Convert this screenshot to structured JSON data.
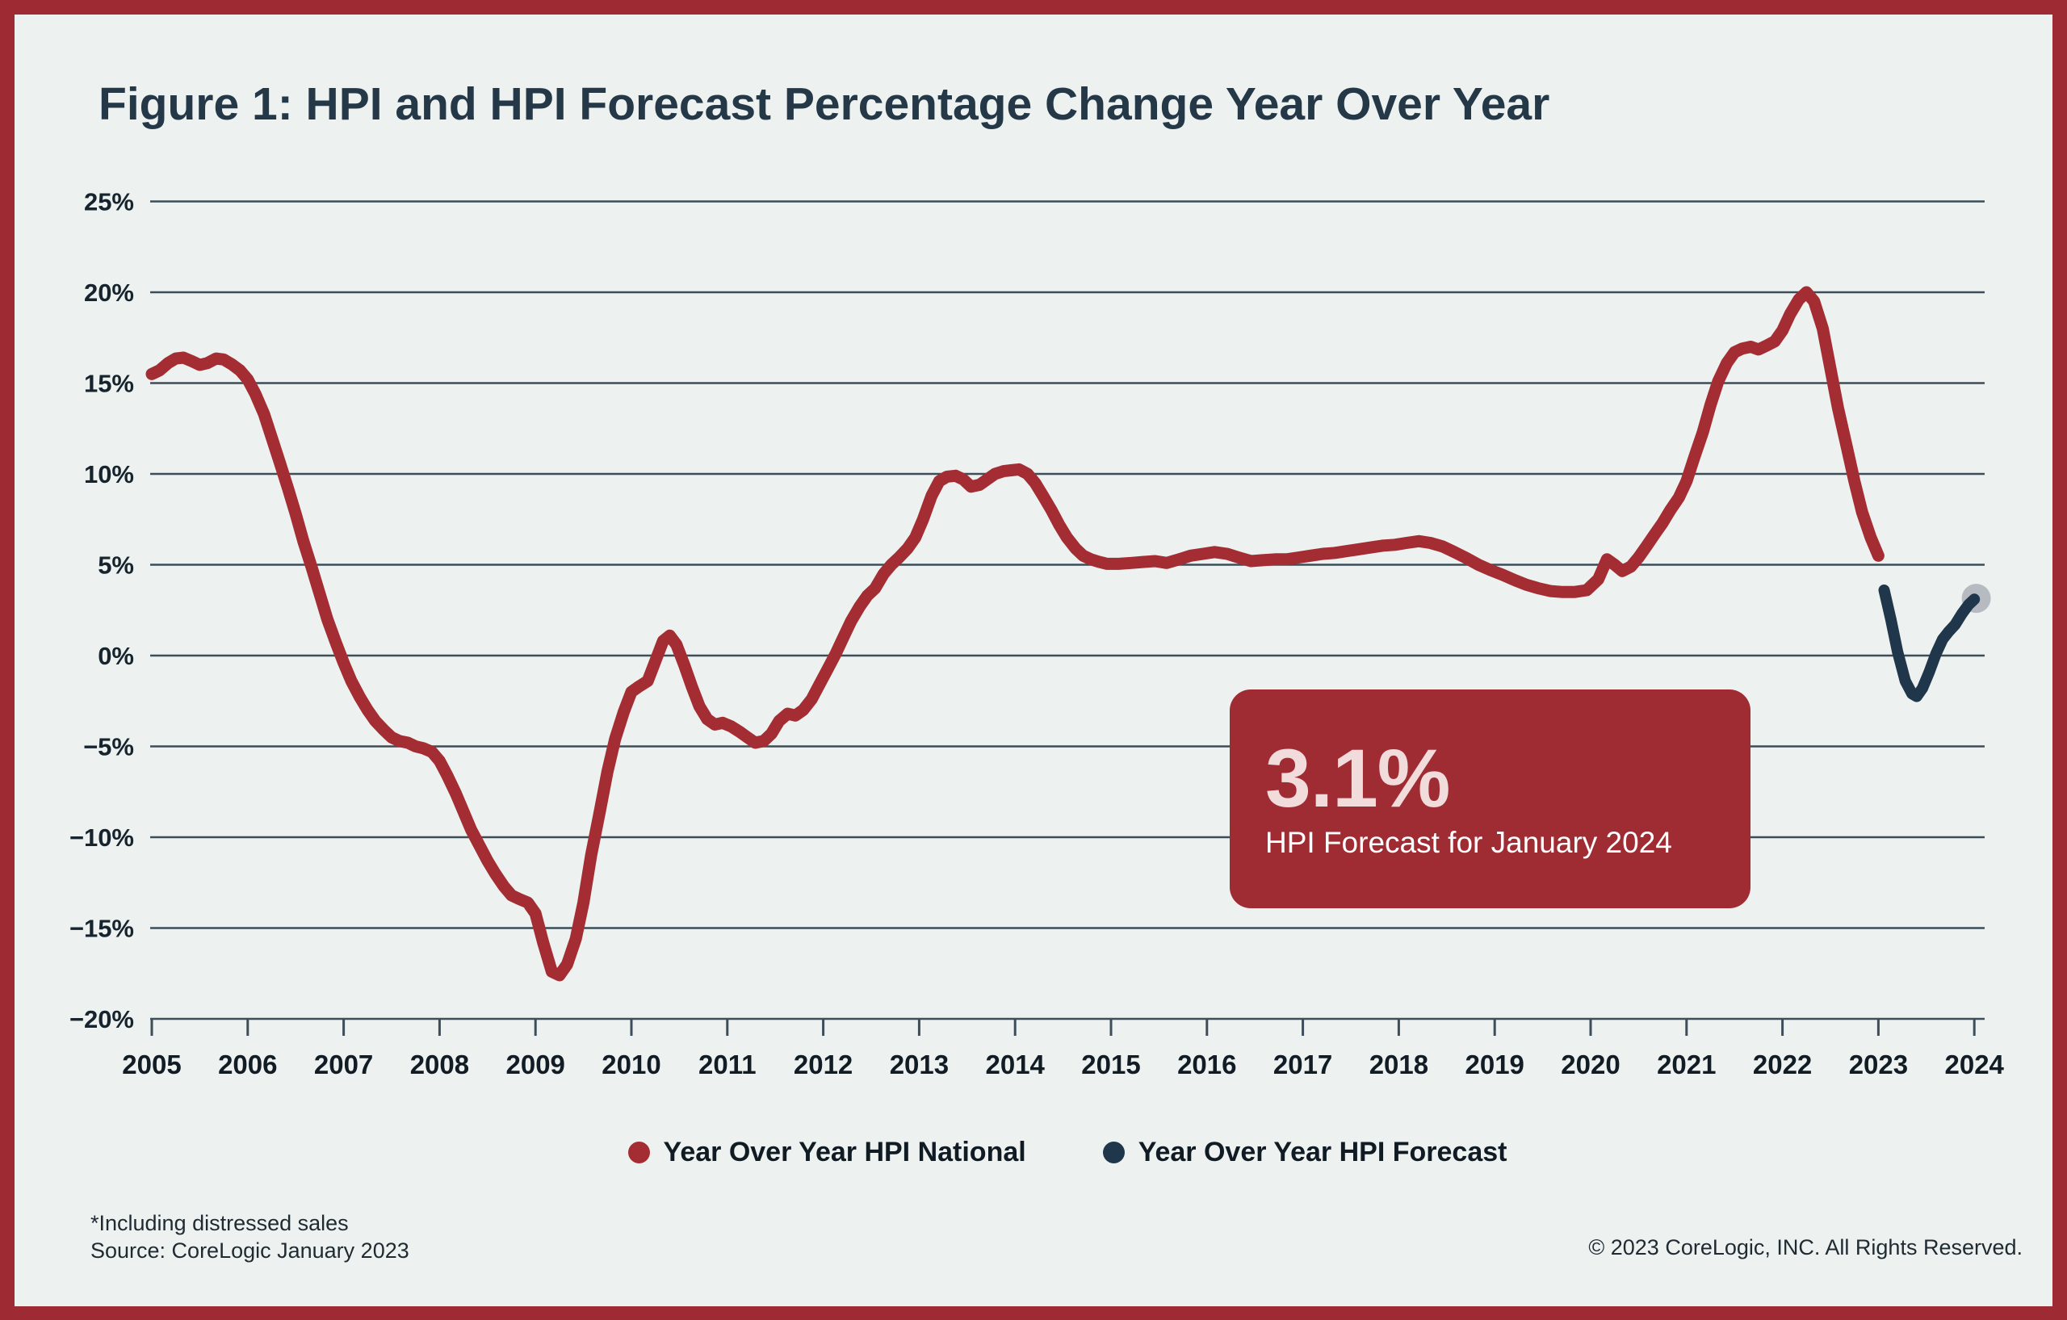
{
  "page": {
    "title": "Figure 1: HPI and HPI Forecast Percentage Change Year Over Year",
    "footnotes": {
      "line1": "*Including distressed sales",
      "line2": "Source: CoreLogic January 2023"
    },
    "copyright": "© 2023 CoreLogic, INC. All Rights Reserved.",
    "colors": {
      "frame": "#9e2b34",
      "background": "#edf2f1",
      "title_text": "#253847",
      "grid": "#3d4d59",
      "axis_text": "#17242e",
      "national_line": "#a42d34",
      "forecast_line": "#20364a",
      "end_marker": "#b5bbc0",
      "callout_bg": "#a02c33",
      "callout_value_text": "#f2dbdb",
      "callout_label_text": "#ffffff"
    }
  },
  "callout": {
    "value": "3.1%",
    "label": "HPI Forecast for January 2024"
  },
  "legend": {
    "national": "Year Over Year HPI National",
    "forecast": "Year Over Year HPI Forecast"
  },
  "chart_data": {
    "type": "line",
    "title": "Figure 1: HPI and HPI Forecast Percentage Change Year Over Year",
    "xlabel": "",
    "ylabel": "",
    "xlim": [
      2005,
      2024.2
    ],
    "ylim": [
      -20,
      25
    ],
    "grid": true,
    "legend_position": "bottom",
    "y_ticks": [
      {
        "label": "25%",
        "value": 25
      },
      {
        "label": "20%",
        "value": 20
      },
      {
        "label": "15%",
        "value": 15
      },
      {
        "label": "10%",
        "value": 10
      },
      {
        "label": "5%",
        "value": 5
      },
      {
        "label": "0%",
        "value": 0
      },
      {
        "label": "−5%",
        "value": -5
      },
      {
        "label": "−10%",
        "value": -10
      },
      {
        "label": "−15%",
        "value": -15
      },
      {
        "label": "−20%",
        "value": -20
      }
    ],
    "x_ticks": [
      {
        "label": "2005",
        "value": 2005
      },
      {
        "label": "2006",
        "value": 2006
      },
      {
        "label": "2007",
        "value": 2007
      },
      {
        "label": "2008",
        "value": 2008
      },
      {
        "label": "2009",
        "value": 2009
      },
      {
        "label": "2010",
        "value": 2010
      },
      {
        "label": "2011",
        "value": 2011
      },
      {
        "label": "2012",
        "value": 2012
      },
      {
        "label": "2013",
        "value": 2013
      },
      {
        "label": "2014",
        "value": 2014
      },
      {
        "label": "2015",
        "value": 2015
      },
      {
        "label": "2016",
        "value": 2016
      },
      {
        "label": "2017",
        "value": 2017
      },
      {
        "label": "2018",
        "value": 2018
      },
      {
        "label": "2019",
        "value": 2019
      },
      {
        "label": "2020",
        "value": 2020
      },
      {
        "label": "2021",
        "value": 2021
      },
      {
        "label": "2022",
        "value": 2022
      },
      {
        "label": "2023",
        "value": 2023
      },
      {
        "label": "2024",
        "value": 2024
      }
    ],
    "series": [
      {
        "name": "Year Over Year HPI National",
        "color": "#a42d34",
        "stroke_width": 15,
        "points": [
          [
            2005.0,
            15.5
          ],
          [
            2005.08,
            15.7
          ],
          [
            2005.17,
            16.1
          ],
          [
            2005.25,
            16.35
          ],
          [
            2005.33,
            16.4
          ],
          [
            2005.42,
            16.2
          ],
          [
            2005.5,
            16.0
          ],
          [
            2005.58,
            16.1
          ],
          [
            2005.67,
            16.35
          ],
          [
            2005.75,
            16.3
          ],
          [
            2005.83,
            16.05
          ],
          [
            2005.92,
            15.7
          ],
          [
            2006.0,
            15.2
          ],
          [
            2006.08,
            14.4
          ],
          [
            2006.17,
            13.3
          ],
          [
            2006.25,
            12.0
          ],
          [
            2006.33,
            10.7
          ],
          [
            2006.42,
            9.2
          ],
          [
            2006.5,
            7.8
          ],
          [
            2006.58,
            6.3
          ],
          [
            2006.67,
            4.8
          ],
          [
            2006.75,
            3.4
          ],
          [
            2006.83,
            2.0
          ],
          [
            2006.92,
            0.7
          ],
          [
            2007.0,
            -0.4
          ],
          [
            2007.08,
            -1.4
          ],
          [
            2007.17,
            -2.3
          ],
          [
            2007.25,
            -3.0
          ],
          [
            2007.33,
            -3.6
          ],
          [
            2007.42,
            -4.1
          ],
          [
            2007.5,
            -4.5
          ],
          [
            2007.58,
            -4.7
          ],
          [
            2007.67,
            -4.8
          ],
          [
            2007.75,
            -5.0
          ],
          [
            2007.83,
            -5.1
          ],
          [
            2007.92,
            -5.3
          ],
          [
            2008.0,
            -5.8
          ],
          [
            2008.08,
            -6.6
          ],
          [
            2008.17,
            -7.6
          ],
          [
            2008.25,
            -8.6
          ],
          [
            2008.33,
            -9.6
          ],
          [
            2008.42,
            -10.5
          ],
          [
            2008.5,
            -11.3
          ],
          [
            2008.58,
            -12.0
          ],
          [
            2008.67,
            -12.7
          ],
          [
            2008.75,
            -13.2
          ],
          [
            2008.83,
            -13.4
          ],
          [
            2008.92,
            -13.6
          ],
          [
            2009.0,
            -14.2
          ],
          [
            2009.08,
            -15.8
          ],
          [
            2009.17,
            -17.4
          ],
          [
            2009.25,
            -17.6
          ],
          [
            2009.33,
            -17.0
          ],
          [
            2009.42,
            -15.6
          ],
          [
            2009.5,
            -13.6
          ],
          [
            2009.58,
            -11.0
          ],
          [
            2009.67,
            -8.6
          ],
          [
            2009.75,
            -6.4
          ],
          [
            2009.83,
            -4.6
          ],
          [
            2009.92,
            -3.1
          ],
          [
            2010.0,
            -2.0
          ],
          [
            2010.08,
            -1.7
          ],
          [
            2010.17,
            -1.4
          ],
          [
            2010.25,
            -0.3
          ],
          [
            2010.33,
            0.8
          ],
          [
            2010.4,
            1.1
          ],
          [
            2010.47,
            0.6
          ],
          [
            2010.55,
            -0.5
          ],
          [
            2010.63,
            -1.7
          ],
          [
            2010.71,
            -2.8
          ],
          [
            2010.79,
            -3.5
          ],
          [
            2010.87,
            -3.8
          ],
          [
            2010.95,
            -3.7
          ],
          [
            2011.04,
            -3.9
          ],
          [
            2011.13,
            -4.2
          ],
          [
            2011.21,
            -4.5
          ],
          [
            2011.29,
            -4.8
          ],
          [
            2011.38,
            -4.7
          ],
          [
            2011.46,
            -4.3
          ],
          [
            2011.54,
            -3.6
          ],
          [
            2011.63,
            -3.2
          ],
          [
            2011.71,
            -3.3
          ],
          [
            2011.79,
            -3.0
          ],
          [
            2011.88,
            -2.4
          ],
          [
            2011.96,
            -1.6
          ],
          [
            2012.04,
            -0.8
          ],
          [
            2012.13,
            0.1
          ],
          [
            2012.21,
            1.0
          ],
          [
            2012.29,
            1.9
          ],
          [
            2012.38,
            2.7
          ],
          [
            2012.46,
            3.3
          ],
          [
            2012.54,
            3.7
          ],
          [
            2012.63,
            4.5
          ],
          [
            2012.71,
            5.0
          ],
          [
            2012.79,
            5.4
          ],
          [
            2012.88,
            5.9
          ],
          [
            2012.96,
            6.5
          ],
          [
            2013.04,
            7.5
          ],
          [
            2013.13,
            8.8
          ],
          [
            2013.21,
            9.6
          ],
          [
            2013.29,
            9.85
          ],
          [
            2013.38,
            9.9
          ],
          [
            2013.46,
            9.7
          ],
          [
            2013.54,
            9.3
          ],
          [
            2013.63,
            9.4
          ],
          [
            2013.71,
            9.7
          ],
          [
            2013.79,
            10.0
          ],
          [
            2013.88,
            10.15
          ],
          [
            2013.96,
            10.2
          ],
          [
            2014.04,
            10.25
          ],
          [
            2014.13,
            10.0
          ],
          [
            2014.21,
            9.5
          ],
          [
            2014.29,
            8.8
          ],
          [
            2014.38,
            8.0
          ],
          [
            2014.46,
            7.2
          ],
          [
            2014.54,
            6.5
          ],
          [
            2014.63,
            5.9
          ],
          [
            2014.71,
            5.5
          ],
          [
            2014.79,
            5.3
          ],
          [
            2014.88,
            5.15
          ],
          [
            2014.96,
            5.05
          ],
          [
            2015.08,
            5.05
          ],
          [
            2015.21,
            5.1
          ],
          [
            2015.33,
            5.15
          ],
          [
            2015.46,
            5.2
          ],
          [
            2015.58,
            5.1
          ],
          [
            2015.71,
            5.3
          ],
          [
            2015.83,
            5.5
          ],
          [
            2015.96,
            5.6
          ],
          [
            2016.08,
            5.7
          ],
          [
            2016.21,
            5.6
          ],
          [
            2016.33,
            5.4
          ],
          [
            2016.46,
            5.2
          ],
          [
            2016.58,
            5.25
          ],
          [
            2016.71,
            5.3
          ],
          [
            2016.83,
            5.3
          ],
          [
            2016.96,
            5.4
          ],
          [
            2017.08,
            5.5
          ],
          [
            2017.21,
            5.6
          ],
          [
            2017.33,
            5.65
          ],
          [
            2017.46,
            5.75
          ],
          [
            2017.58,
            5.85
          ],
          [
            2017.71,
            5.95
          ],
          [
            2017.83,
            6.05
          ],
          [
            2017.96,
            6.1
          ],
          [
            2018.08,
            6.2
          ],
          [
            2018.21,
            6.3
          ],
          [
            2018.33,
            6.2
          ],
          [
            2018.46,
            6.0
          ],
          [
            2018.58,
            5.7
          ],
          [
            2018.71,
            5.35
          ],
          [
            2018.83,
            5.0
          ],
          [
            2018.96,
            4.7
          ],
          [
            2019.08,
            4.45
          ],
          [
            2019.21,
            4.15
          ],
          [
            2019.33,
            3.9
          ],
          [
            2019.46,
            3.7
          ],
          [
            2019.58,
            3.55
          ],
          [
            2019.71,
            3.5
          ],
          [
            2019.83,
            3.5
          ],
          [
            2019.96,
            3.6
          ],
          [
            2020.08,
            4.2
          ],
          [
            2020.17,
            5.3
          ],
          [
            2020.25,
            5.0
          ],
          [
            2020.33,
            4.65
          ],
          [
            2020.42,
            4.9
          ],
          [
            2020.5,
            5.4
          ],
          [
            2020.58,
            6.0
          ],
          [
            2020.67,
            6.7
          ],
          [
            2020.75,
            7.3
          ],
          [
            2020.83,
            8.0
          ],
          [
            2020.92,
            8.7
          ],
          [
            2021.0,
            9.6
          ],
          [
            2021.08,
            10.9
          ],
          [
            2021.17,
            12.3
          ],
          [
            2021.25,
            13.8
          ],
          [
            2021.33,
            15.1
          ],
          [
            2021.42,
            16.1
          ],
          [
            2021.5,
            16.7
          ],
          [
            2021.58,
            16.9
          ],
          [
            2021.67,
            17.0
          ],
          [
            2021.75,
            16.85
          ],
          [
            2021.83,
            17.05
          ],
          [
            2021.92,
            17.3
          ],
          [
            2022.0,
            17.9
          ],
          [
            2022.08,
            18.8
          ],
          [
            2022.17,
            19.6
          ],
          [
            2022.25,
            20.0
          ],
          [
            2022.33,
            19.5
          ],
          [
            2022.42,
            18.0
          ],
          [
            2022.5,
            15.8
          ],
          [
            2022.58,
            13.6
          ],
          [
            2022.67,
            11.5
          ],
          [
            2022.75,
            9.6
          ],
          [
            2022.83,
            7.9
          ],
          [
            2022.92,
            6.5
          ],
          [
            2023.0,
            5.5
          ]
        ]
      },
      {
        "name": "Year Over Year HPI Forecast",
        "color": "#20364a",
        "stroke_width": 14,
        "points": [
          [
            2023.06,
            3.6
          ],
          [
            2023.13,
            2.0
          ],
          [
            2023.2,
            0.2
          ],
          [
            2023.28,
            -1.4
          ],
          [
            2023.35,
            -2.1
          ],
          [
            2023.4,
            -2.25
          ],
          [
            2023.46,
            -1.8
          ],
          [
            2023.53,
            -0.9
          ],
          [
            2023.6,
            0.1
          ],
          [
            2023.67,
            0.9
          ],
          [
            2023.73,
            1.3
          ],
          [
            2023.8,
            1.7
          ],
          [
            2023.87,
            2.3
          ],
          [
            2023.94,
            2.8
          ],
          [
            2024.0,
            3.1
          ]
        ],
        "end_marker": {
          "x": 2024.02,
          "y": 3.15,
          "radius": 18,
          "color": "#b5bbc0"
        }
      }
    ],
    "annotation": {
      "value": "3.1%",
      "label": "HPI Forecast for January 2024"
    }
  }
}
